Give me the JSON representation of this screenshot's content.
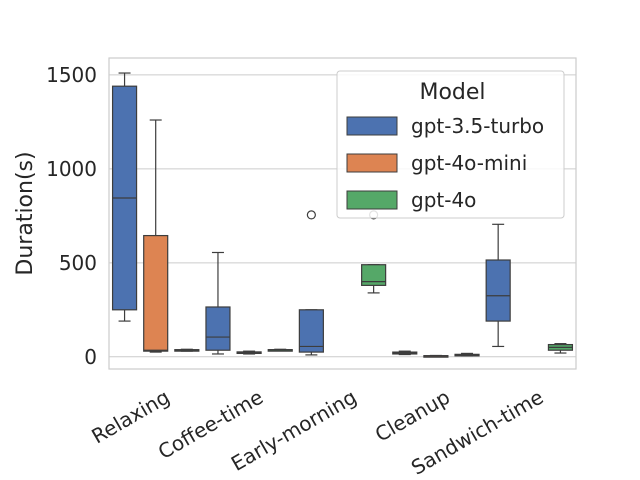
{
  "chart_data": {
    "type": "box",
    "title": "",
    "xlabel": "",
    "ylabel": "Duration(s)",
    "ylim": [
      -65,
      1590
    ],
    "yticks": [
      0,
      500,
      1000,
      1500
    ],
    "grid": "horizontal",
    "legend": {
      "title": "Model",
      "placement": "top-right"
    },
    "categories": [
      "Relaxing",
      "Coffee-time",
      "Early-morning",
      "Cleanup",
      "Sandwich-time"
    ],
    "series": [
      {
        "name": "gpt-3.5-turbo",
        "color": "#4c72b0",
        "boxes": [
          {
            "category": "Relaxing",
            "whisker_low": 190,
            "q1": 250,
            "median": 845,
            "q3": 1440,
            "whisker_high": 1510,
            "outliers": []
          },
          {
            "category": "Coffee-time",
            "whisker_low": 15,
            "q1": 35,
            "median": 105,
            "q3": 265,
            "whisker_high": 555,
            "outliers": []
          },
          {
            "category": "Early-morning",
            "whisker_low": 10,
            "q1": 25,
            "median": 55,
            "q3": 250,
            "whisker_high": 250,
            "outliers": [
              755
            ]
          },
          {
            "category": "Cleanup",
            "whisker_low": 12,
            "q1": 15,
            "median": 20,
            "q3": 25,
            "whisker_high": 30,
            "outliers": []
          },
          {
            "category": "Sandwich-time",
            "whisker_low": 55,
            "q1": 190,
            "median": 325,
            "q3": 515,
            "whisker_high": 705,
            "outliers": []
          }
        ]
      },
      {
        "name": "gpt-4o-mini",
        "color": "#dd8452",
        "boxes": [
          {
            "category": "Relaxing",
            "whisker_low": 25,
            "q1": 30,
            "median": 35,
            "q3": 645,
            "whisker_high": 1260,
            "outliers": []
          },
          {
            "category": "Coffee-time",
            "whisker_low": 15,
            "q1": 18,
            "median": 22,
            "q3": 26,
            "whisker_high": 30,
            "outliers": []
          },
          {
            "category": "Early-morning",
            "whisker_low": null,
            "q1": null,
            "median": null,
            "q3": null,
            "whisker_high": null,
            "outliers": []
          },
          {
            "category": "Cleanup",
            "whisker_low": 3,
            "q1": 4,
            "median": 5,
            "q3": 6,
            "whisker_high": 7,
            "outliers": []
          },
          {
            "category": "Sandwich-time",
            "whisker_low": null,
            "q1": null,
            "median": null,
            "q3": null,
            "whisker_high": null,
            "outliers": []
          }
        ]
      },
      {
        "name": "gpt-4o",
        "color": "#55a868",
        "boxes": [
          {
            "category": "Relaxing",
            "whisker_low": 30,
            "q1": 32,
            "median": 35,
            "q3": 38,
            "whisker_high": 40,
            "outliers": []
          },
          {
            "category": "Coffee-time",
            "whisker_low": 35,
            "q1": 36,
            "median": 37,
            "q3": 38,
            "whisker_high": 40,
            "outliers": []
          },
          {
            "category": "Early-morning",
            "whisker_low": 340,
            "q1": 380,
            "median": 400,
            "q3": 490,
            "whisker_high": 490,
            "outliers": [
              755
            ]
          },
          {
            "category": "Cleanup",
            "whisker_low": 5,
            "q1": 7,
            "median": 10,
            "q3": 13,
            "whisker_high": 18,
            "outliers": []
          },
          {
            "category": "Sandwich-time",
            "whisker_low": 20,
            "q1": 35,
            "median": 50,
            "q3": 65,
            "whisker_high": 70,
            "outliers": []
          }
        ]
      }
    ]
  }
}
